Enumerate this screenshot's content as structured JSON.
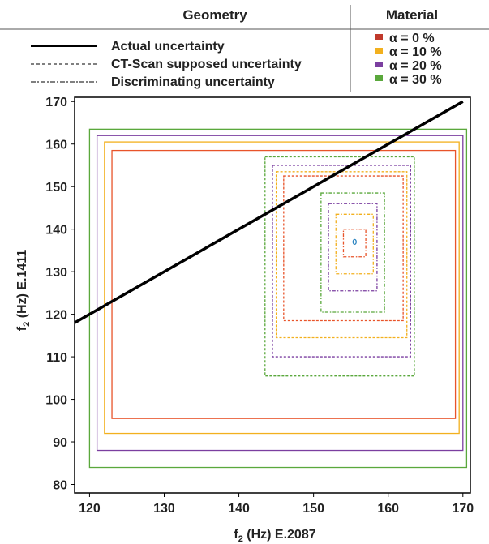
{
  "legend": {
    "geometry_header": "Geometry",
    "material_header": "Material",
    "geometry_items": [
      {
        "label": "Actual uncertainty",
        "style": "solid"
      },
      {
        "label": "CT-Scan supposed uncertainty",
        "style": "dashed"
      },
      {
        "label": "Discriminating uncertainty",
        "style": "dashdot"
      }
    ],
    "material_items": [
      {
        "label": "α = 0   %",
        "color": "#c0392b"
      },
      {
        "label": "α = 10 %",
        "color": "#f2b01e"
      },
      {
        "label": "α = 20 %",
        "color": "#7b3fa0"
      },
      {
        "label": "α = 30 %",
        "color": "#5aa83c"
      }
    ]
  },
  "chart_data": {
    "type": "scatter",
    "xlabel_main": "f",
    "xlabel_sub": "2",
    "xlabel_rest": " (Hz) E.2087",
    "ylabel_main": "f",
    "ylabel_sub": "2",
    "ylabel_rest": " (Hz) E.1411",
    "xlim": [
      118,
      171
    ],
    "ylim": [
      78,
      171
    ],
    "xticks": [
      120,
      130,
      140,
      150,
      160,
      170
    ],
    "yticks": [
      80,
      90,
      100,
      110,
      120,
      130,
      140,
      150,
      160,
      170
    ],
    "diagonal": {
      "x": [
        118,
        170
      ],
      "y": [
        118,
        170
      ],
      "color": "#000000"
    },
    "point": {
      "x": 155.5,
      "y": 137,
      "color": "#2e86c1"
    },
    "rectangles": [
      {
        "alpha": "0",
        "type": "actual",
        "color": "#e8542a",
        "x": [
          123,
          169
        ],
        "y": [
          95.5,
          158.5
        ]
      },
      {
        "alpha": "10",
        "type": "actual",
        "color": "#f2b01e",
        "x": [
          122,
          169.5
        ],
        "y": [
          92,
          160.5
        ]
      },
      {
        "alpha": "20",
        "type": "actual",
        "color": "#7b3fa0",
        "x": [
          121,
          170
        ],
        "y": [
          88,
          162
        ]
      },
      {
        "alpha": "30",
        "type": "actual",
        "color": "#5aa83c",
        "x": [
          120,
          170.5
        ],
        "y": [
          84,
          163.5
        ]
      },
      {
        "alpha": "0",
        "type": "ct",
        "color": "#e8542a",
        "x": [
          146,
          162
        ],
        "y": [
          118.5,
          152.5
        ]
      },
      {
        "alpha": "10",
        "type": "ct",
        "color": "#f2b01e",
        "x": [
          145,
          162.5
        ],
        "y": [
          114.5,
          153.5
        ]
      },
      {
        "alpha": "20",
        "type": "ct",
        "color": "#7b3fa0",
        "x": [
          144.5,
          163
        ],
        "y": [
          110,
          155
        ]
      },
      {
        "alpha": "30",
        "type": "ct",
        "color": "#5aa83c",
        "x": [
          143.5,
          163.5
        ],
        "y": [
          105.5,
          157
        ]
      },
      {
        "alpha": "0",
        "type": "disc",
        "color": "#e8542a",
        "x": [
          154,
          157
        ],
        "y": [
          133.5,
          140
        ]
      },
      {
        "alpha": "10",
        "type": "disc",
        "color": "#f2b01e",
        "x": [
          153,
          158
        ],
        "y": [
          129.5,
          143.5
        ]
      },
      {
        "alpha": "20",
        "type": "disc",
        "color": "#7b3fa0",
        "x": [
          152,
          158.5
        ],
        "y": [
          125.5,
          146
        ]
      },
      {
        "alpha": "30",
        "type": "disc",
        "color": "#5aa83c",
        "x": [
          151,
          159.5
        ],
        "y": [
          120.5,
          148.5
        ]
      }
    ]
  }
}
